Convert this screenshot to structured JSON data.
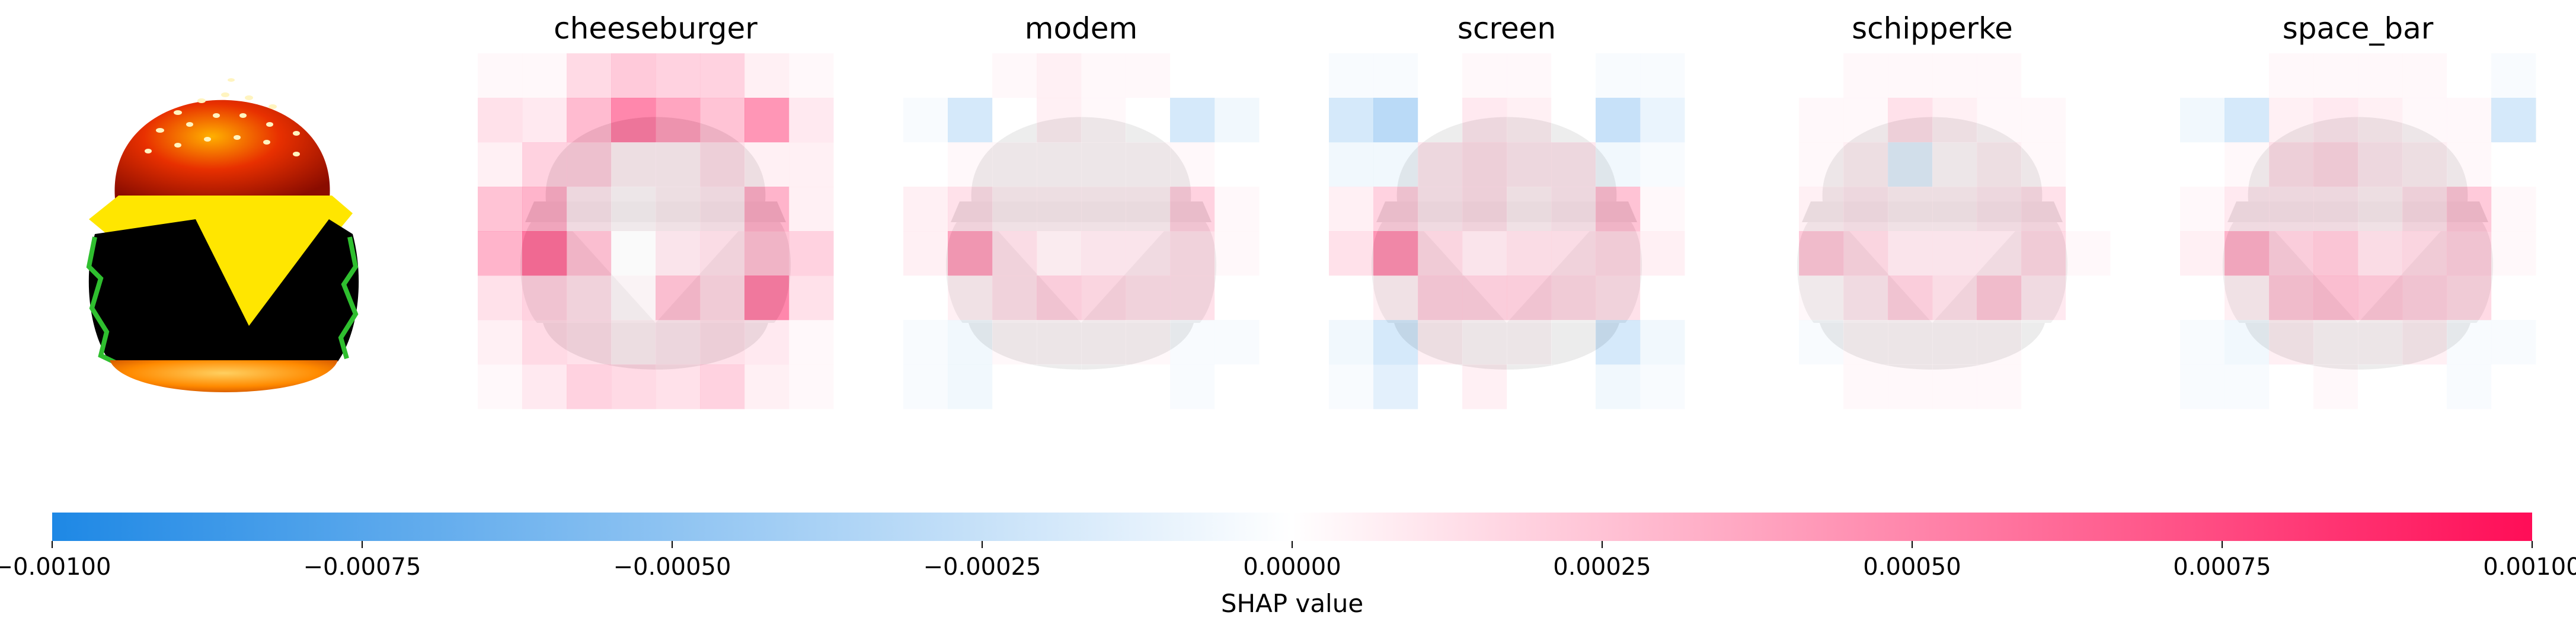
{
  "figure": {
    "input_image": {
      "name": "cheeseburger input image"
    },
    "panels": [
      {
        "title": "cheeseburger"
      },
      {
        "title": "modem"
      },
      {
        "title": "screen"
      },
      {
        "title": "schipperke"
      },
      {
        "title": "space_bar"
      }
    ]
  },
  "chart_data": {
    "type": "heatmap",
    "colors": {
      "negative": "#1e88e5",
      "neutral": "#ffffff",
      "positive": "#ff0d57",
      "background_image": "#cccccc"
    },
    "grid": {
      "rows": 8,
      "cols": 8
    },
    "panels": [
      {
        "title": "cheeseburger",
        "values": [
          [
            5e-05,
            5e-05,
            0.00025,
            0.00035,
            0.0003,
            0.0003,
            0.0001,
            5e-05
          ],
          [
            0.0002,
            0.00015,
            0.00045,
            0.0008,
            0.0006,
            0.0004,
            0.0007,
            0.00015
          ],
          [
            0.0001,
            0.0003,
            0.0003,
            0.0001,
            0.0001,
            0.0002,
            0.0001,
            0.0001
          ],
          [
            0.0004,
            0.0005,
            0.00015,
            5e-05,
            0.0001,
            0.00015,
            0.0005,
            0.0001
          ],
          [
            0.0005,
            0.0009,
            0.0004,
            0.0,
            0.00015,
            0.0002,
            0.0004,
            0.0003
          ],
          [
            0.0002,
            0.0003,
            0.0002,
            5e-05,
            0.0004,
            0.00025,
            0.0008,
            0.0002
          ],
          [
            0.0001,
            0.00025,
            0.0002,
            0.0001,
            0.00015,
            0.0002,
            0.00015,
            5e-05
          ],
          [
            5e-05,
            0.00015,
            0.0003,
            0.00025,
            0.0002,
            0.0003,
            0.0001,
            5e-05
          ]
        ]
      },
      {
        "title": "modem",
        "values": [
          [
            0.0,
            0.0,
            5e-05,
            0.0001,
            5e-05,
            5e-05,
            0.0,
            0.0
          ],
          [
            -5e-05,
            -0.0003,
            0.0,
            0.0001,
            5e-05,
            0.0,
            -0.0003,
            -0.0001
          ],
          [
            0.0,
            5e-05,
            5e-05,
            5e-05,
            5e-05,
            5e-05,
            5e-05,
            0.0
          ],
          [
            0.0001,
            0.0002,
            0.0001,
            0.0001,
            0.0001,
            0.0001,
            0.0003,
            5e-05
          ],
          [
            0.0001,
            0.0006,
            0.0002,
            0.0001,
            0.00015,
            0.00015,
            0.0002,
            5e-05
          ],
          [
            0.0,
            0.0001,
            0.0002,
            0.0003,
            0.00025,
            0.0002,
            0.0002,
            0.0
          ],
          [
            -5e-05,
            -0.0001,
            5e-05,
            5e-05,
            5e-05,
            5e-05,
            -5e-05,
            -5e-05
          ],
          [
            -5e-05,
            -0.0001,
            0.0,
            0.0,
            0.0,
            0.0,
            -5e-05,
            0.0
          ]
        ]
      },
      {
        "title": "screen",
        "values": [
          [
            -5e-05,
            -5e-05,
            0.0,
            5e-05,
            5e-05,
            0.0,
            -5e-05,
            -5e-05
          ],
          [
            -0.0003,
            -0.0005,
            0.0,
            0.00015,
            0.0001,
            0.0,
            -0.0004,
            -0.00015
          ],
          [
            -0.0001,
            -0.0001,
            0.00015,
            0.0002,
            0.00015,
            0.00015,
            -0.0001,
            -5e-05
          ],
          [
            0.0001,
            0.0003,
            0.00015,
            0.0002,
            0.0001,
            0.00015,
            0.0004,
            5e-05
          ],
          [
            0.0002,
            0.0007,
            0.00025,
            0.00015,
            0.0002,
            0.0002,
            0.00025,
            0.0001
          ],
          [
            0.0,
            0.0001,
            0.0003,
            0.0003,
            0.0003,
            0.00025,
            0.0002,
            0.0
          ],
          [
            -0.0001,
            -0.0003,
            0.0001,
            5e-05,
            5e-05,
            0.0,
            -0.0003,
            -0.0001
          ],
          [
            -5e-05,
            -0.0002,
            0.0,
            0.0001,
            0.0,
            0.0,
            -0.0001,
            -5e-05
          ]
        ]
      },
      {
        "title": "schipperke",
        "values": [
          [
            0.0,
            0.0,
            5e-05,
            5e-05,
            5e-05,
            5e-05,
            0.0,
            0.0
          ],
          [
            0.0,
            5e-05,
            5e-05,
            0.0002,
            0.0001,
            5e-05,
            5e-05,
            0.0
          ],
          [
            0.0,
            5e-05,
            0.0001,
            -0.0002,
            5e-05,
            0.0001,
            5e-05,
            0.0
          ],
          [
            0.0,
            0.0001,
            0.00015,
            0.0001,
            0.0001,
            0.00015,
            0.0002,
            0.0
          ],
          [
            0.0,
            0.00035,
            0.00025,
            0.00015,
            0.00015,
            0.00015,
            0.00025,
            5e-05
          ],
          [
            0.0,
            5e-05,
            0.00015,
            0.0003,
            0.0002,
            0.00035,
            0.00015,
            0.0
          ],
          [
            0.0,
            -5e-05,
            5e-05,
            5e-05,
            5e-05,
            5e-05,
            0.0,
            0.0
          ],
          [
            0.0,
            0.0,
            5e-05,
            5e-05,
            5e-05,
            5e-05,
            0.0,
            0.0
          ]
        ]
      },
      {
        "title": "space_bar",
        "values": [
          [
            0.0,
            0.0,
            5e-05,
            5e-05,
            5e-05,
            5e-05,
            0.0,
            -5e-05
          ],
          [
            -0.0001,
            -0.0003,
            0.0001,
            0.00015,
            0.0001,
            5e-05,
            5e-05,
            -0.0003
          ],
          [
            0.0,
            5e-05,
            0.0002,
            0.00025,
            0.00015,
            0.0001,
            5e-05,
            0.0
          ],
          [
            5e-05,
            0.00015,
            0.00015,
            0.00015,
            0.0001,
            0.0002,
            0.00035,
            5e-05
          ],
          [
            0.0001,
            0.0005,
            0.0003,
            0.00035,
            0.0002,
            0.00025,
            0.0003,
            5e-05
          ],
          [
            0.0,
            0.0001,
            0.00035,
            0.0004,
            0.00035,
            0.0003,
            0.00025,
            0.0
          ],
          [
            -5e-05,
            -0.0001,
            0.0001,
            5e-05,
            5e-05,
            0.0001,
            -5e-05,
            -5e-05
          ],
          [
            -5e-05,
            -5e-05,
            0.0,
            5e-05,
            0.0,
            0.0,
            -5e-05,
            0.0
          ]
        ]
      }
    ],
    "colorbar": {
      "label": "SHAP value",
      "range": [
        -0.001,
        0.001
      ],
      "ticks": [
        -0.001,
        -0.00075,
        -0.0005,
        -0.00025,
        0.0,
        0.00025,
        0.0005,
        0.00075,
        0.001
      ],
      "tick_labels": [
        "−0.00100",
        "−0.00075",
        "−0.00050",
        "−0.00025",
        "0.00000",
        "0.00025",
        "0.00050",
        "0.00075",
        "0.00100"
      ]
    }
  }
}
